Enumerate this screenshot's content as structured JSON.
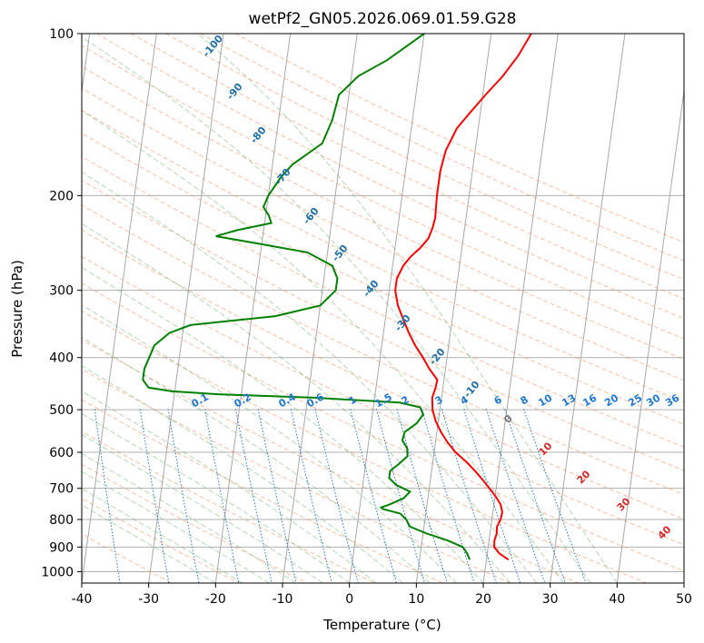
{
  "chart_data": {
    "type": "line",
    "title": "wetPf2_GN05.2026.069.01.59.G28",
    "xlabel": "Temperature (°C)",
    "ylabel": "Pressure (hPa)",
    "xlim": [
      -40,
      50
    ],
    "ylim": [
      1050,
      100
    ],
    "y_scale": "log",
    "x_ticks": [
      -40,
      -30,
      -20,
      -10,
      0,
      10,
      20,
      30,
      40,
      50
    ],
    "y_ticks": [
      100,
      200,
      300,
      400,
      500,
      600,
      700,
      800,
      900,
      1000
    ],
    "grid": true,
    "series": [
      {
        "color": "#ff0000",
        "pressure": [
          950,
          925,
          900,
          875,
          850,
          825,
          800,
          775,
          750,
          725,
          700,
          675,
          650,
          625,
          600,
          575,
          550,
          525,
          500,
          475,
          455,
          440,
          420,
          400,
          380,
          360,
          340,
          320,
          300,
          285,
          270,
          260,
          250,
          240,
          230,
          220,
          200,
          180,
          165,
          150,
          140,
          130,
          120,
          110,
          100
        ],
        "temperature": [
          23.3,
          21.8,
          20.9,
          20.8,
          21.0,
          20.9,
          21.3,
          21.4,
          21.0,
          20.1,
          19.0,
          17.8,
          16.5,
          15.0,
          13.2,
          11.8,
          10.6,
          9.6,
          8.9,
          8.6,
          8.9,
          9.0,
          7.6,
          6.4,
          5.0,
          3.8,
          2.7,
          1.6,
          0.9,
          0.9,
          1.6,
          2.5,
          3.8,
          4.8,
          5.2,
          5.4,
          5.2,
          5.2,
          5.6,
          6.8,
          8.5,
          10.4,
          12.6,
          14.5,
          16.0
        ]
      },
      {
        "color": "#008000",
        "pressure": [
          950,
          925,
          900,
          875,
          850,
          825,
          800,
          780,
          765,
          760,
          750,
          730,
          710,
          690,
          670,
          650,
          630,
          610,
          590,
          570,
          550,
          530,
          510,
          495,
          485,
          475,
          468,
          462,
          455,
          440,
          420,
          400,
          380,
          360,
          348,
          335,
          320,
          300,
          285,
          270,
          255,
          245,
          238,
          232,
          225,
          218,
          210,
          200,
          185,
          175,
          160,
          145,
          130,
          120,
          112,
          100
        ],
        "temperature": [
          17.5,
          17.0,
          16.2,
          13.8,
          10.6,
          7.9,
          7.2,
          6.2,
          3.5,
          3.2,
          4.4,
          6.4,
          7.2,
          5.0,
          3.8,
          3.8,
          5.0,
          6.1,
          5.9,
          5.0,
          5.2,
          6.8,
          7.6,
          7.0,
          3.8,
          -9.0,
          -23.5,
          -30.5,
          -34.0,
          -35.0,
          -35.0,
          -34.5,
          -34.0,
          -32.0,
          -29.0,
          -16.5,
          -10.0,
          -8.0,
          -8.0,
          -9.0,
          -13.0,
          -21.0,
          -27.0,
          -24.0,
          -19.0,
          -19.5,
          -20.5,
          -20.0,
          -18.5,
          -17.0,
          -13.0,
          -12.0,
          -11.5,
          -9.0,
          -5.0,
          0.0
        ]
      }
    ],
    "dry_adiabat_labels": [
      "-100",
      "-90",
      "-80",
      "-70",
      "-60",
      "-50",
      "-40",
      "-30",
      "-20",
      "-10"
    ],
    "mixing_ratio_labels": [
      "0.1",
      "0.2",
      "0.4",
      "0.6",
      "1",
      "1.5",
      "2",
      "3",
      "4",
      "6",
      "8",
      "10",
      "13",
      "16",
      "20",
      "25",
      "30",
      "36"
    ],
    "moist_adiabat_labels": [
      "0",
      "10",
      "20",
      "30",
      "40"
    ],
    "colors": {
      "dry_adiabat": "#f08a5a",
      "moist_adiabat": "#5aa85a",
      "isotherm": "#808080",
      "mixing_ratio": "#1f77d4",
      "dry_label": "#1f6fa8",
      "moist_label": "#d62728"
    }
  }
}
